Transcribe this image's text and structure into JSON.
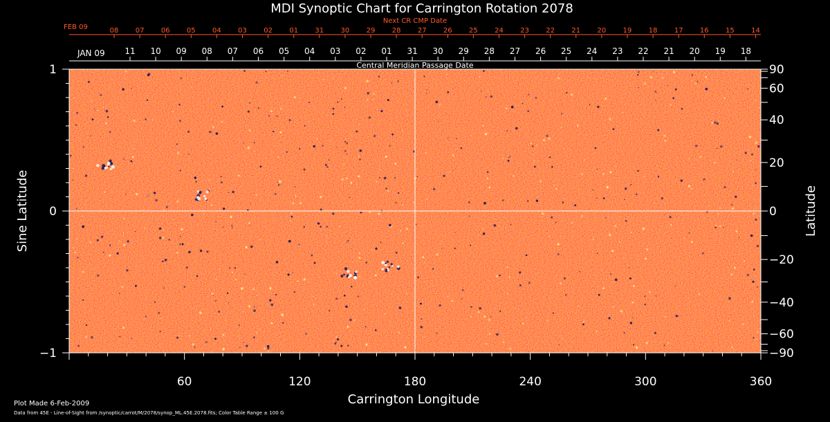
{
  "chart_data": {
    "type": "heatmap",
    "title": "MDI Synoptic Chart for Carrington Rotation 2078",
    "xlabel": "Carrington Longitude",
    "ylabel_left": "Sine Latitude",
    "ylabel_right": "Latitude",
    "xlim": [
      0,
      360
    ],
    "ylim": [
      -1,
      1
    ],
    "x_ticks": [
      "60",
      "120",
      "180",
      "240",
      "300",
      "360"
    ],
    "x_tick_values": [
      60,
      120,
      180,
      240,
      300,
      360
    ],
    "y_left_ticks": [
      {
        "label": "1",
        "value": 1
      },
      {
        "label": "0",
        "value": 0
      },
      {
        "label": "−1",
        "value": -1
      }
    ],
    "y_right_ticks": [
      {
        "label": "90",
        "deg": 90
      },
      {
        "label": "60",
        "deg": 60
      },
      {
        "label": "40",
        "deg": 40
      },
      {
        "label": "20",
        "deg": 20
      },
      {
        "label": "0",
        "deg": 0
      },
      {
        "label": "−20",
        "deg": -20
      },
      {
        "label": "−40",
        "deg": -40
      },
      {
        "label": "−60",
        "deg": -60
      },
      {
        "label": "−90",
        "deg": -90
      }
    ],
    "reference_lines": {
      "longitude": 180,
      "sine_latitude": 0
    },
    "cmp_date_label": "Central Meridian Passage Date",
    "cmp_month_label": "JAN 09",
    "cmp_dates": [
      "11",
      "10",
      "09",
      "08",
      "07",
      "06",
      "05",
      "04",
      "03",
      "02",
      "01",
      "31",
      "30",
      "29",
      "28",
      "27",
      "26",
      "25",
      "24",
      "23",
      "22",
      "21",
      "20",
      "19",
      "18"
    ],
    "next_cr_label": "Next CR CMP Date",
    "next_cr_month_label": "FEB 09",
    "next_cr_dates": [
      "08",
      "07",
      "06",
      "05",
      "04",
      "03",
      "02",
      "01",
      "31",
      "30",
      "29",
      "28",
      "27",
      "26",
      "25",
      "24",
      "23",
      "22",
      "21",
      "20",
      "19",
      "18",
      "17",
      "16",
      "15",
      "14"
    ],
    "colors": {
      "background": "#ff5a1a",
      "positive": "#ffe08a",
      "negative": "#1a1a55",
      "next_cr": "#ff5a2a"
    }
  },
  "footer": {
    "plot_made": "Plot Made  6-Feb-2009",
    "data_note": "Data from 45E - Line-of-Sight from /synoptic/carrot/M/2078/synop_ML.45E.2078.fits; Color Table Range ± 100 G"
  }
}
